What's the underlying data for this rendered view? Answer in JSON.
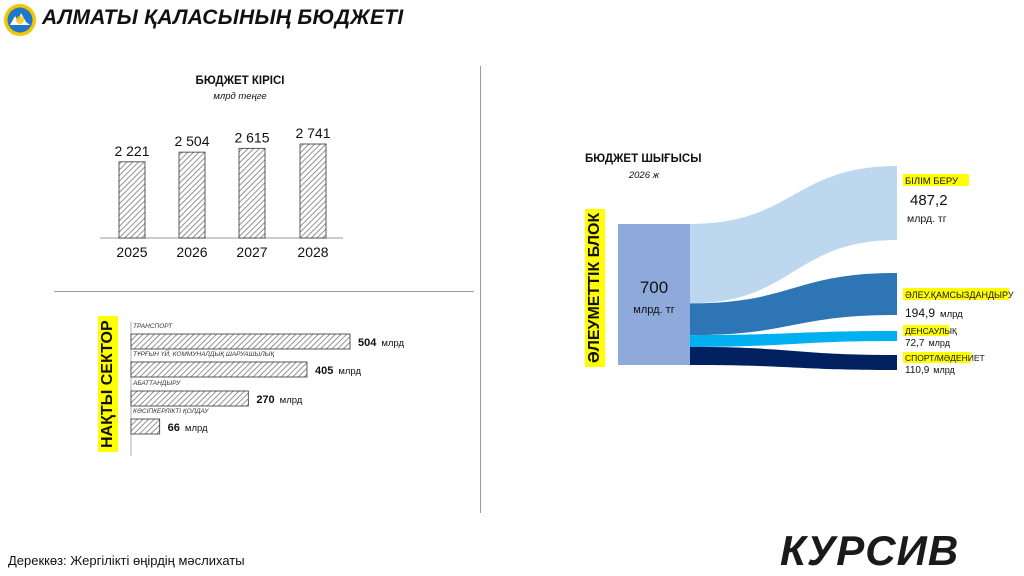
{
  "header": {
    "title": "АЛМАТЫ ҚАЛАСЫНЫҢ БЮДЖЕТІ",
    "emblem_icon": "almaty-emblem-icon"
  },
  "revenue": {
    "title": "БЮДЖЕТ КІРІСІ",
    "unit": "млрд теңге"
  },
  "sectors": {
    "label": "НАҚТЫ СЕКТОР"
  },
  "expenses": {
    "title": "БЮДЖЕТ ШЫҒЫСЫ",
    "year": "2026 ж",
    "block_label": "ӘЛЕУМЕТТІК БЛОК",
    "total_value": "700",
    "total_unit": "млрд. тг"
  },
  "footer": {
    "source": "Дереккөз: Жергілікті өңірдің мәслихаты",
    "brand": "КУРСИВ"
  },
  "colors": {
    "hatch": "#777777",
    "block": "#8eaadb",
    "education": "#bdd7ee",
    "social": "#2e75b6",
    "health": "#00b0f0",
    "sport": "#002060",
    "highlight": "#ffff00"
  },
  "chart_data": [
    {
      "type": "bar",
      "title": "БЮДЖЕТ КІРІСІ",
      "subtitle": "млрд теңге",
      "categories": [
        "2025",
        "2026",
        "2027",
        "2028"
      ],
      "values": [
        2221,
        2504,
        2615,
        2741
      ],
      "value_labels": [
        "2 221",
        "2 504",
        "2 615",
        "2 741"
      ],
      "grid": false
    },
    {
      "type": "bar",
      "orientation": "horizontal",
      "categories": [
        "ТРАНСПОРТ",
        "ТҰРҒЫН ҮЙ, КОММУНАЛДЫҚ ШАРУАШЫЛЫҚ",
        "АБАТТАНДЫРУ",
        "КӘСІПКЕРЛІКТІ ҚОЛДАУ"
      ],
      "values": [
        504,
        405,
        270,
        66
      ],
      "unit": "млрд",
      "grid": false
    },
    {
      "type": "sankey",
      "title": "БЮДЖЕТ ШЫҒЫСЫ",
      "subtitle": "2026 ж",
      "source": {
        "name": "ӘЛЕУМЕТТІК БЛОК",
        "value": 700,
        "value_label": "700",
        "unit": "млрд. тг"
      },
      "targets": [
        {
          "name": "БІЛІМ БЕРУ",
          "value": 487.2,
          "value_label": "487,2",
          "unit": "млрд. тг"
        },
        {
          "name": "ӘЛЕУ.ҚАМСЫЗДАНДЫРУ",
          "value": 194.9,
          "value_label": "194,9",
          "unit": "млрд"
        },
        {
          "name": "ДЕНСАУЛЫҚ",
          "value": 72.7,
          "value_label": "72,7",
          "unit": "млрд"
        },
        {
          "name": "СПОРТ/МӘДЕНИЕТ",
          "value": 110.9,
          "value_label": "110,9",
          "unit": "млрд"
        }
      ]
    }
  ]
}
